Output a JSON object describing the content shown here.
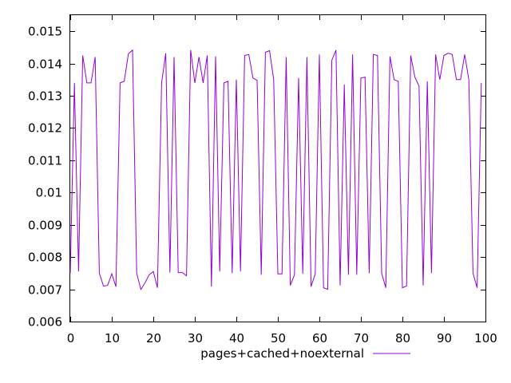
{
  "chart_data": {
    "type": "line",
    "title": "",
    "xlabel": "",
    "ylabel": "",
    "xlim": [
      0,
      100
    ],
    "ylim": [
      0.006,
      0.0155
    ],
    "xticks": [
      "0",
      "10",
      "20",
      "30",
      "40",
      "50",
      "60",
      "70",
      "80",
      "90",
      "100"
    ],
    "yticks": [
      "0.006",
      "0.007",
      "0.008",
      "0.009",
      "0.01",
      "0.011",
      "0.012",
      "0.013",
      "0.014",
      "0.015"
    ],
    "grid": false,
    "legend_position": "bottom-center",
    "series": [
      {
        "name": "pages+cached+noexternal",
        "color": "#9400d3",
        "x": [
          0,
          1,
          2,
          3,
          4,
          5,
          6,
          7,
          8,
          9,
          10,
          11,
          12,
          13,
          14,
          15,
          16,
          17,
          18,
          19,
          20,
          21,
          22,
          23,
          24,
          25,
          26,
          27,
          28,
          29,
          30,
          31,
          32,
          33,
          34,
          35,
          36,
          37,
          38,
          39,
          40,
          41,
          42,
          43,
          44,
          45,
          46,
          47,
          48,
          49,
          50,
          51,
          52,
          53,
          54,
          55,
          56,
          57,
          58,
          59,
          60,
          61,
          62,
          63,
          64,
          65,
          66,
          67,
          68,
          69,
          70,
          71,
          72,
          73,
          74,
          75,
          76,
          77,
          78,
          79,
          80,
          81,
          82,
          83,
          84,
          85,
          86,
          87,
          88,
          89,
          90,
          91,
          92,
          93,
          94,
          95,
          96,
          97,
          98,
          99
        ],
        "y": [
          0.0075,
          0.0134,
          0.00755,
          0.01425,
          0.0134,
          0.0134,
          0.0142,
          0.0075,
          0.0071,
          0.00712,
          0.00748,
          0.00708,
          0.0134,
          0.01345,
          0.0143,
          0.01442,
          0.0075,
          0.007,
          0.0072,
          0.00745,
          0.00755,
          0.00705,
          0.0134,
          0.01432,
          0.00752,
          0.0142,
          0.00752,
          0.00752,
          0.00742,
          0.01442,
          0.0134,
          0.0142,
          0.0134,
          0.01425,
          0.00708,
          0.01422,
          0.00755,
          0.0134,
          0.01345,
          0.0075,
          0.0135,
          0.00755,
          0.01425,
          0.01428,
          0.01355,
          0.01348,
          0.00745,
          0.01435,
          0.0144,
          0.0135,
          0.00748,
          0.00748,
          0.0142,
          0.00712,
          0.00745,
          0.01355,
          0.00748,
          0.0142,
          0.00708,
          0.00748,
          0.01428,
          0.00705,
          0.007,
          0.0141,
          0.01442,
          0.00712,
          0.01335,
          0.00745,
          0.01428,
          0.00745,
          0.01355,
          0.01358,
          0.0075,
          0.01428,
          0.01425,
          0.0075,
          0.00705,
          0.01422,
          0.0135,
          0.01345,
          0.00705,
          0.0071,
          0.01425,
          0.01358,
          0.0133,
          0.00712,
          0.01345,
          0.0075,
          0.01428,
          0.0135,
          0.01425,
          0.01432,
          0.01428,
          0.0135,
          0.0135,
          0.01428,
          0.0135,
          0.0075,
          0.00705,
          0.0134
        ]
      }
    ]
  }
}
